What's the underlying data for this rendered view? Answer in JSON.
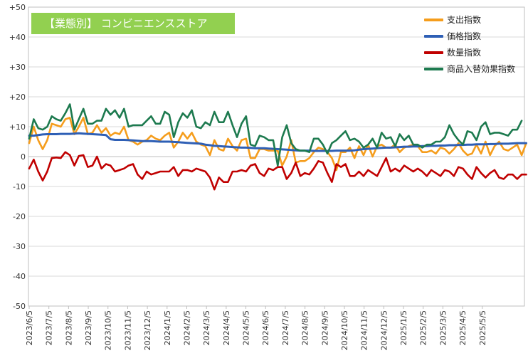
{
  "chart_data": {
    "type": "line",
    "title": "【業態別】 コンビニエンスストア",
    "ylim": [
      -50,
      50
    ],
    "y_ticks": [
      "+50",
      "+40",
      "+30",
      "+20",
      "+10",
      "0",
      "-10",
      "-20",
      "-30",
      "-40",
      "-50"
    ],
    "x_tick_labels": [
      "2023/6/5",
      "2023/7/5",
      "2023/8/5",
      "2023/9/5",
      "2023/10/5",
      "2023/11/5",
      "2023/12/5",
      "2024/1/5",
      "2024/2/5",
      "2024/3/5",
      "2024/4/5",
      "2024/5/5",
      "2024/6/5",
      "2024/7/5",
      "2024/8/5",
      "2024/9/5",
      "2024/10/5",
      "2024/11/5",
      "2024/12/5",
      "2025/1/5",
      "2025/2/5",
      "2025/3/5",
      "2025/4/5",
      "2025/5/5"
    ],
    "grid": true,
    "legend_position": "top-right",
    "series": [
      {
        "name": "支出指数",
        "color": "#f59d1c",
        "values": [
          4.5,
          10,
          5.5,
          2.5,
          5.5,
          11,
          10.5,
          10,
          12.5,
          13,
          7.5,
          10,
          13,
          7.5,
          8,
          10.5,
          8,
          9.5,
          7,
          8,
          7.5,
          10,
          5.5,
          5,
          4,
          5,
          5.5,
          7,
          6,
          5.5,
          7,
          8,
          3,
          5,
          8,
          6,
          8,
          5,
          4,
          3.5,
          0.5,
          5.5,
          2.5,
          2,
          6,
          3.5,
          2,
          5.5,
          6,
          -0.5,
          -0.5,
          2.5,
          2.5,
          2,
          2,
          2,
          -3,
          0,
          5.5,
          -2,
          -1.5,
          -1.5,
          -0.5,
          1.5,
          3,
          2.5,
          1.5,
          -0.5,
          -4.5,
          1.5,
          1.5,
          3,
          -0.5,
          3.5,
          0.5,
          4,
          0,
          3.5,
          4,
          3,
          3,
          4,
          1.5,
          3,
          3.5,
          4,
          3.5,
          1.5,
          1.5,
          2,
          1,
          3,
          2.5,
          1,
          2.5,
          4.5,
          2,
          0.5,
          1,
          4,
          1,
          5,
          0.5,
          3.5,
          5,
          2.5,
          2,
          3,
          4,
          0.5,
          4.5
        ]
      },
      {
        "name": "価格指数",
        "color": "#2e5fb5",
        "values": [
          7,
          7,
          7.2,
          7.4,
          7.5,
          7.5,
          7.5,
          7.6,
          7.6,
          7.6,
          7.7,
          7.8,
          7.7,
          7.6,
          7.5,
          7.4,
          7.3,
          7.2,
          5.8,
          5.6,
          5.6,
          5.6,
          5.5,
          5.4,
          5.3,
          5.2,
          5.2,
          5.2,
          5.1,
          5,
          5,
          5,
          4.9,
          4.8,
          4.7,
          4.6,
          4.5,
          4.4,
          4.3,
          4,
          3.8,
          3.6,
          3.5,
          3.4,
          3.3,
          3.2,
          3.1,
          3,
          3,
          2.9,
          2.8,
          2.8,
          2.8,
          2.7,
          2.6,
          2.5,
          2.4,
          2.3,
          2.2,
          2.1,
          2,
          2,
          2,
          1.9,
          1.9,
          1.9,
          1.9,
          1.9,
          2,
          2,
          2,
          2,
          2.1,
          2.3,
          2.5,
          2.6,
          2.7,
          2.8,
          2.9,
          3,
          3,
          3.1,
          3.2,
          3.3,
          3.3,
          3.4,
          3.4,
          3.5,
          3.5,
          3.6,
          3.6,
          3.7,
          3.7,
          3.8,
          3.8,
          3.9,
          3.9,
          4,
          4,
          4.1,
          4.1,
          4.1,
          4.2,
          4.2,
          4.3,
          4.3,
          4.3,
          4.4,
          4.5,
          4.5,
          4.5
        ]
      },
      {
        "name": "数量指数",
        "color": "#c00000",
        "values": [
          -4,
          -1,
          -5,
          -8,
          -5,
          -0.5,
          -0.3,
          -0.5,
          1.5,
          0.5,
          -3,
          0.2,
          0.5,
          -3.5,
          -3,
          0,
          -4,
          -2.5,
          -3,
          -5,
          -4.5,
          -4,
          -3,
          -2.5,
          -6,
          -7.5,
          -5,
          -6,
          -5.5,
          -5,
          -5,
          -5,
          -3.5,
          -6.5,
          -4.5,
          -4.5,
          -5,
          -4,
          -4.5,
          -5,
          -7,
          -11,
          -7,
          -8.5,
          -8.5,
          -5,
          -5,
          -4.5,
          -5,
          -3,
          -2.5,
          -5.5,
          -6.5,
          -4,
          -4.5,
          -3.5,
          -3.5,
          -7.5,
          -5.5,
          -2,
          -6.5,
          -5.5,
          -6,
          -4,
          -1.5,
          -2,
          -5.5,
          -8.5,
          -2.5,
          -3.5,
          -2.5,
          -6.5,
          -6.5,
          -5,
          -6.5,
          -4.5,
          -5.5,
          -6.5,
          -3.5,
          -0.5,
          -5,
          -4,
          -5,
          -3,
          -4,
          -5,
          -4,
          -5,
          -6.5,
          -4.5,
          -5.5,
          -6.5,
          -4.5,
          -5,
          -6.5,
          -3.5,
          -4,
          -6,
          -7.5,
          -3.5,
          -5.5,
          -7,
          -5.5,
          -4.5,
          -7,
          -7.5,
          -6,
          -6,
          -7.5,
          -6,
          -6
        ]
      },
      {
        "name": "商品入替効果指数",
        "color": "#1d7a4f",
        "values": [
          6,
          12.5,
          9.5,
          9,
          10,
          13.5,
          12.5,
          12,
          14.5,
          17.5,
          9,
          12.5,
          16,
          11,
          11,
          12,
          12,
          16,
          14,
          15.5,
          13,
          16,
          10,
          10.5,
          10.5,
          10.5,
          12,
          13.5,
          11,
          11,
          15,
          14,
          6.5,
          11.5,
          14.5,
          13,
          15.5,
          10,
          9.5,
          11.5,
          10.5,
          15,
          11.5,
          11.5,
          15,
          10.5,
          6.5,
          11,
          13.5,
          4,
          3.5,
          7,
          6.5,
          5.5,
          5.5,
          -3,
          6.5,
          10.5,
          4.5,
          2.5,
          2,
          2,
          1.5,
          6,
          6,
          4,
          1,
          4.5,
          5.5,
          7,
          8.5,
          5.5,
          6,
          5,
          3,
          4,
          6,
          3,
          8,
          6,
          6.5,
          3.5,
          7.5,
          5.5,
          7,
          4,
          4,
          3,
          4,
          4,
          5,
          5,
          6.5,
          10.5,
          7.5,
          5.5,
          4,
          8.5,
          8,
          5.5,
          10,
          11.5,
          7.5,
          8,
          8,
          7.5,
          7,
          9,
          9,
          12
        ]
      }
    ]
  }
}
